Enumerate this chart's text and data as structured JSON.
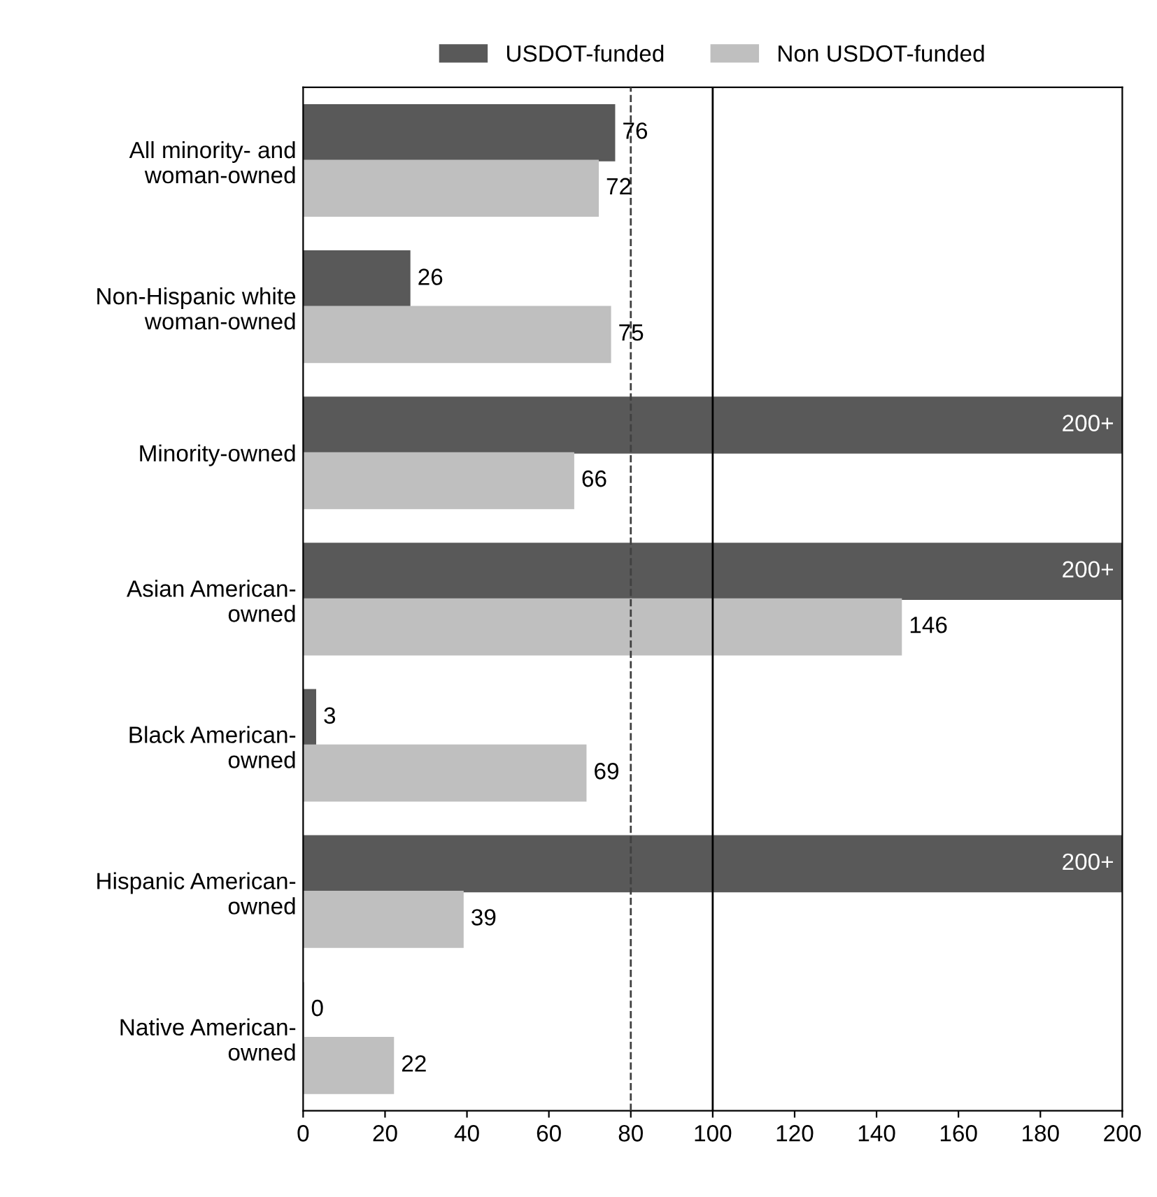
{
  "chart_data": {
    "type": "bar",
    "orientation": "horizontal",
    "categories": [
      "All minority- and\nwoman-owned",
      "Non-Hispanic white\nwoman-owned",
      "Minority-owned",
      "Asian American-\nowned",
      "Black American-\nowned",
      "Hispanic American-\nowned",
      "Native American-\nowned"
    ],
    "series": [
      {
        "name": "USDOT-funded",
        "color": "#595959",
        "values": [
          76,
          26,
          200,
          200,
          3,
          200,
          0
        ],
        "value_labels": [
          "76",
          "26",
          "200+",
          "200+",
          "3",
          "200+",
          "0"
        ]
      },
      {
        "name": "Non USDOT-funded",
        "color": "#bfbfbf",
        "values": [
          72,
          75,
          66,
          146,
          69,
          39,
          22
        ],
        "value_labels": [
          "72",
          "75",
          "66",
          "146",
          "69",
          "39",
          "22"
        ]
      }
    ],
    "xlim": [
      0,
      200
    ],
    "xticks": [
      0,
      20,
      40,
      60,
      80,
      100,
      120,
      140,
      160,
      180,
      200
    ],
    "ref_lines": [
      {
        "axis": "x",
        "value": 80,
        "line_style": "dashed",
        "color": "#404040"
      },
      {
        "axis": "x",
        "value": 100,
        "line_style": "solid",
        "color": "#000000"
      }
    ],
    "legend": "top",
    "grid": false
  }
}
